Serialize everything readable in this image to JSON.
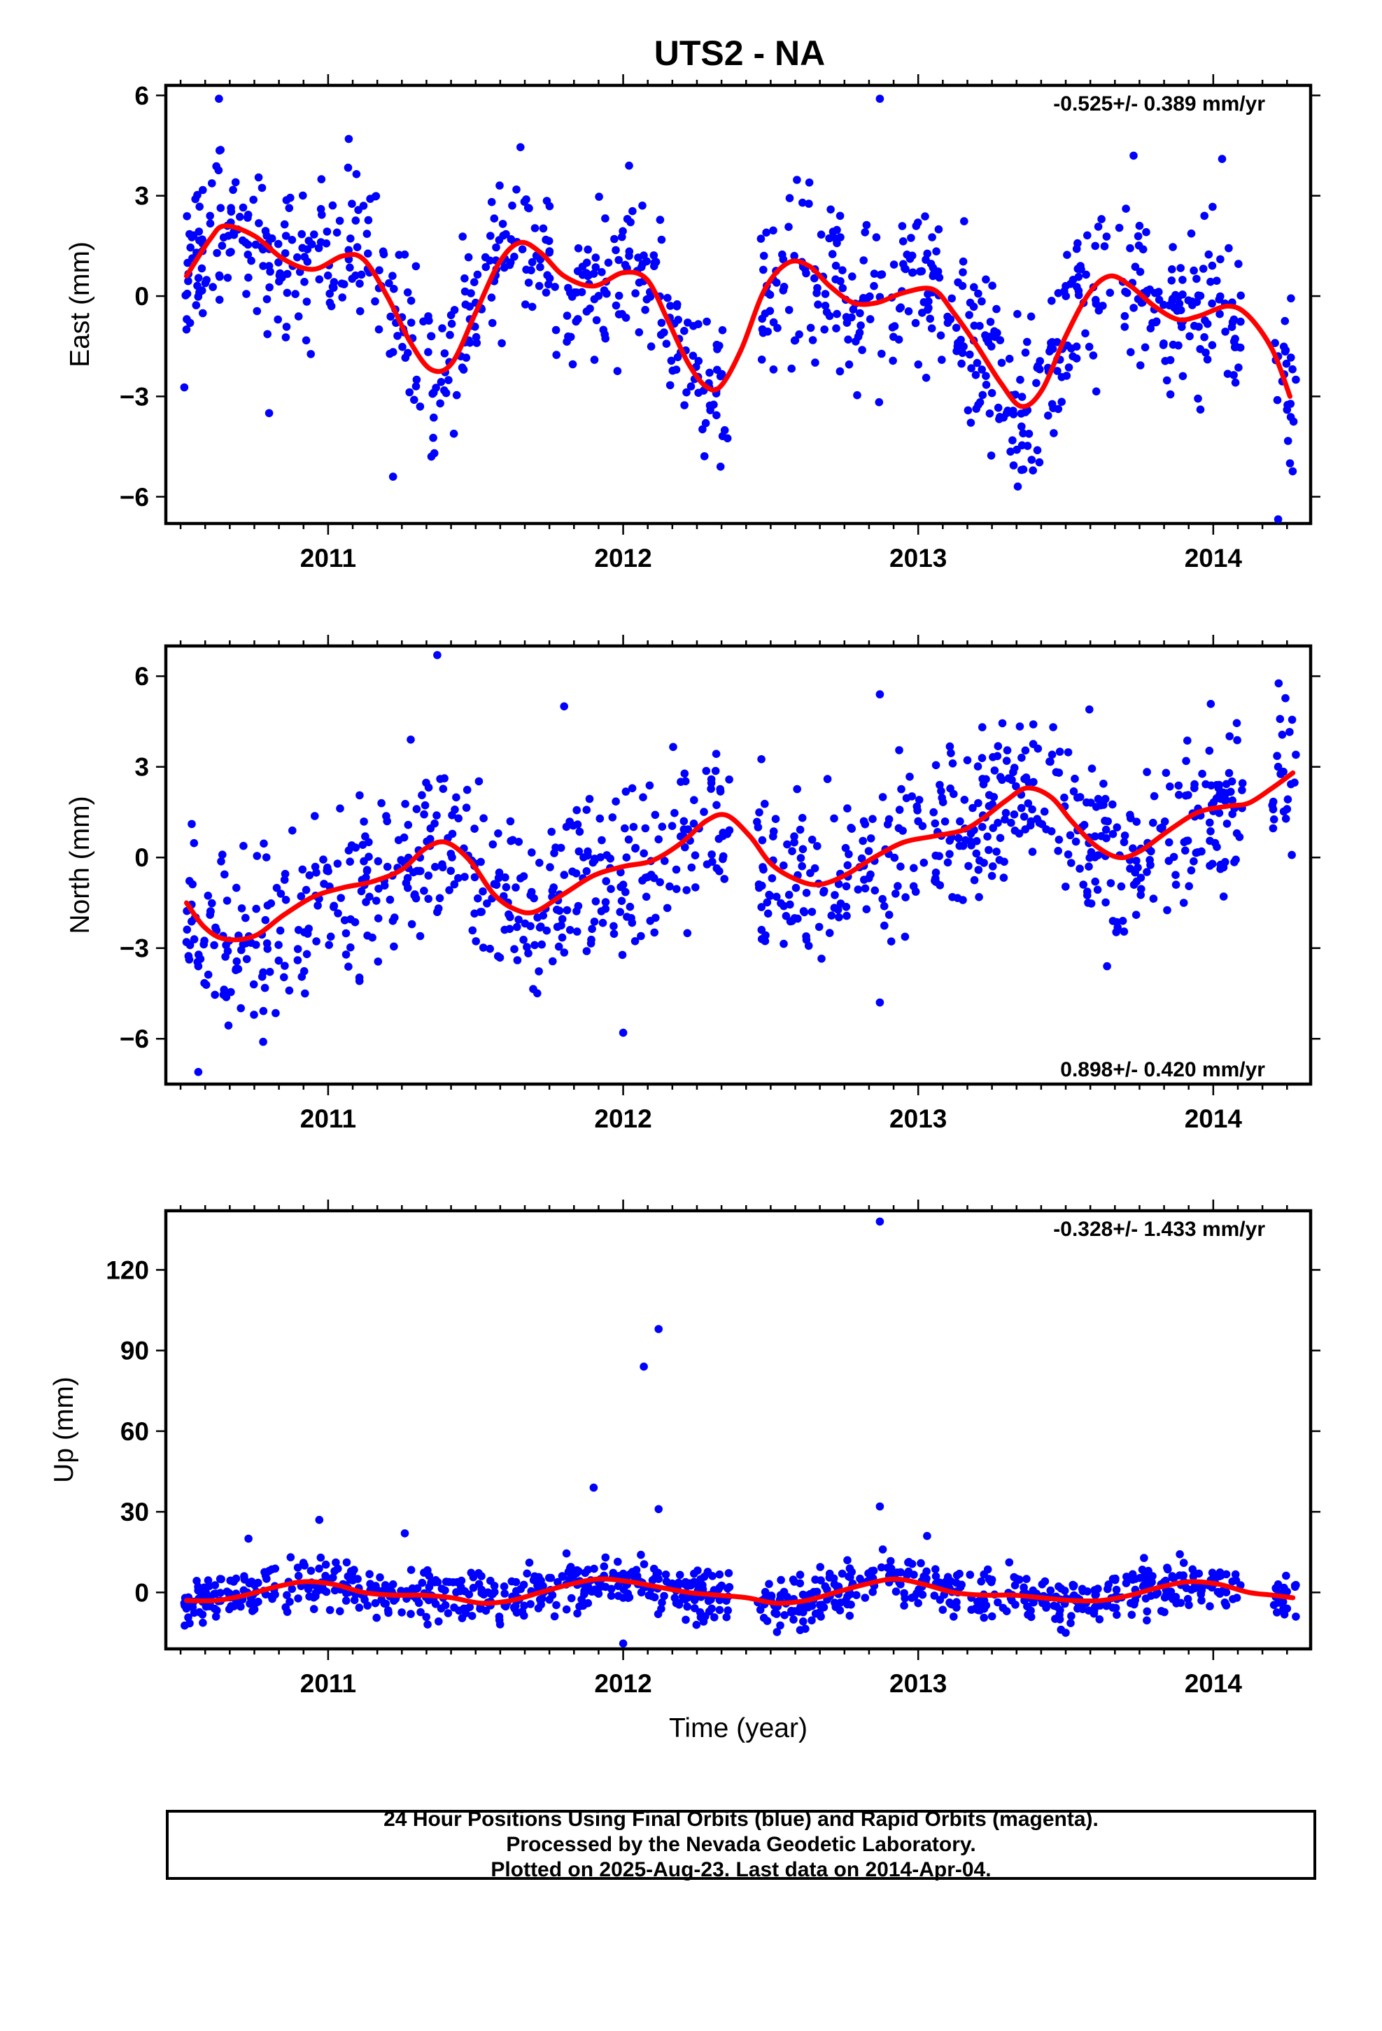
{
  "title": "UTS2 - NA",
  "colors": {
    "final_orbits": "#0000ff",
    "trend": "#ff0000",
    "frame": "#000000"
  },
  "x_axis": {
    "label": "Time (year)",
    "ticks": [
      "2011",
      "2012",
      "2013",
      "2014"
    ],
    "xlim": [
      2010.45,
      2014.33
    ]
  },
  "footer": {
    "line1": "24 Hour Positions Using Final Orbits (blue) and Rapid Orbits (magenta).",
    "line2": "Processed by the Nevada Geodetic Laboratory.",
    "line3": "Plotted on 2025-Aug-23. Last data on 2014-Apr-04."
  },
  "chart_data": [
    {
      "type": "scatter",
      "component": "east",
      "ylabel": "East (mm)",
      "rate": "-0.525+/- 0.389 mm/yr",
      "rate_position": "top-right",
      "ylim": [
        -6.8,
        6.3
      ],
      "yticks": [
        {
          "v": 6,
          "label": "6"
        },
        {
          "v": 3,
          "label": "3"
        },
        {
          "v": 0,
          "label": "0"
        },
        {
          "v": -3,
          "label": "−3"
        },
        {
          "v": -6,
          "label": "−6"
        }
      ],
      "trend": {
        "x": [
          2010.52,
          2010.6,
          2010.65,
          2010.75,
          2010.85,
          2010.95,
          2011.05,
          2011.12,
          2011.2,
          2011.28,
          2011.35,
          2011.42,
          2011.5,
          2011.58,
          2011.65,
          2011.72,
          2011.8,
          2011.9,
          2012.0,
          2012.08,
          2012.15,
          2012.22,
          2012.28,
          2012.33,
          2012.4,
          2012.48,
          2012.56,
          2012.63,
          2012.7,
          2012.78,
          2012.86,
          2012.95,
          2013.05,
          2013.12,
          2013.2,
          2013.28,
          2013.35,
          2013.42,
          2013.5,
          2013.58,
          2013.65,
          2013.72,
          2013.8,
          2013.88,
          2013.95,
          2014.05,
          2014.12,
          2014.2,
          2014.26
        ],
        "y": [
          0.6,
          1.7,
          2.1,
          1.8,
          1.1,
          0.8,
          1.2,
          1.1,
          0.0,
          -1.4,
          -2.2,
          -2.0,
          -0.5,
          1.0,
          1.6,
          1.3,
          0.6,
          0.3,
          0.7,
          0.5,
          -0.7,
          -2.0,
          -2.7,
          -2.7,
          -1.6,
          0.2,
          1.0,
          0.9,
          0.3,
          -0.2,
          -0.2,
          0.1,
          0.2,
          -0.5,
          -1.5,
          -2.6,
          -3.3,
          -2.8,
          -1.2,
          0.1,
          0.6,
          0.3,
          -0.3,
          -0.7,
          -0.6,
          -0.3,
          -0.6,
          -1.6,
          -3.0
        ]
      },
      "points": {
        "x": [
          2010.52,
          2010.55,
          2010.6,
          2010.67,
          2010.72,
          2010.78,
          2010.83,
          2010.88,
          2010.93,
          2010.97,
          2011.03,
          2011.07,
          2011.12,
          2011.18,
          2011.23,
          2011.27,
          2011.3,
          2011.35,
          2011.4,
          2011.45,
          2011.5,
          2011.55,
          2011.62,
          2011.68,
          2011.75,
          2011.82,
          2011.88,
          2011.95,
          2012.02,
          2012.08,
          2012.13,
          2012.18,
          2012.23,
          2012.28,
          2012.33,
          2012.47,
          2012.52,
          2012.58,
          2012.65,
          2012.72,
          2012.78,
          2012.85,
          2012.92,
          2012.98,
          2013.05,
          2013.1,
          2013.15,
          2013.2,
          2013.25,
          2013.3,
          2013.35,
          2013.4,
          2013.45,
          2013.5,
          2013.55,
          2013.6,
          2013.65,
          2013.7,
          2013.75,
          2013.8,
          2013.86,
          2013.92,
          2013.97,
          2014.02,
          2014.07,
          2014.22,
          2014.25,
          2014.28
        ],
        "y": [
          -1.0,
          2.9,
          2.4,
          2.2,
          1.6,
          0.9,
          -0.7,
          0.9,
          1.4,
          0.5,
          1.9,
          1.1,
          2.7,
          0.3,
          -0.8,
          -1.7,
          -2.5,
          -1.2,
          -2.9,
          -1.8,
          -0.2,
          1.8,
          1.7,
          0.4,
          1.3,
          0.1,
          0.6,
          1.0,
          1.2,
          -0.1,
          -0.8,
          -2.2,
          -2.7,
          -3.8,
          -2.4,
          -1.9,
          0.4,
          1.2,
          0.8,
          0.5,
          -0.4,
          0.3,
          -0.9,
          0.7,
          0.6,
          -0.8,
          -1.7,
          -2.0,
          -2.9,
          -3.5,
          -3.9,
          -2.6,
          -1.4,
          0.3,
          0.9,
          1.5,
          0.1,
          -0.6,
          2.1,
          -0.4,
          0.8,
          -1.2,
          2.4,
          -0.1,
          -0.7,
          -1.8,
          -3.4,
          -2.5
        ]
      },
      "outliers": {
        "x": [
          2010.63,
          2011.07,
          2012.02,
          2012.87,
          2013.73,
          2014.03,
          2011.22,
          2011.35,
          2012.33,
          2013.35,
          2014.22,
          2014.26,
          2010.8
        ],
        "y": [
          5.9,
          4.7,
          3.9,
          5.9,
          4.2,
          4.1,
          -5.4,
          -4.8,
          -5.1,
          -5.2,
          -6.7,
          -5.0,
          -3.5
        ]
      }
    },
    {
      "type": "scatter",
      "component": "north",
      "ylabel": "North (mm)",
      "rate": "0.898+/- 0.420 mm/yr",
      "rate_position": "bottom-right",
      "ylim": [
        -7.5,
        7.0
      ],
      "yticks": [
        {
          "v": 6,
          "label": "6"
        },
        {
          "v": 3,
          "label": "3"
        },
        {
          "v": 0,
          "label": "0"
        },
        {
          "v": -3,
          "label": "−3"
        },
        {
          "v": -6,
          "label": "−6"
        }
      ],
      "trend": {
        "x": [
          2010.52,
          2010.58,
          2010.65,
          2010.75,
          2010.85,
          2010.95,
          2011.05,
          2011.15,
          2011.25,
          2011.33,
          2011.4,
          2011.48,
          2011.56,
          2011.63,
          2011.7,
          2011.8,
          2011.9,
          2012.0,
          2012.1,
          2012.2,
          2012.28,
          2012.35,
          2012.43,
          2012.5,
          2012.58,
          2012.66,
          2012.75,
          2012.85,
          2012.95,
          2013.05,
          2013.15,
          2013.22,
          2013.3,
          2013.37,
          2013.45,
          2013.52,
          2013.6,
          2013.68,
          2013.75,
          2013.85,
          2013.95,
          2014.05,
          2014.12,
          2014.2,
          2014.27
        ],
        "y": [
          -1.5,
          -2.3,
          -2.7,
          -2.6,
          -1.9,
          -1.3,
          -1.0,
          -0.8,
          -0.4,
          0.3,
          0.5,
          -0.1,
          -1.2,
          -1.7,
          -1.8,
          -1.2,
          -0.6,
          -0.3,
          -0.1,
          0.5,
          1.2,
          1.4,
          0.7,
          -0.2,
          -0.7,
          -0.9,
          -0.6,
          0.0,
          0.5,
          0.7,
          0.9,
          1.3,
          1.9,
          2.3,
          2.0,
          1.2,
          0.4,
          0.0,
          0.2,
          0.9,
          1.5,
          1.7,
          1.8,
          2.3,
          2.8
        ]
      },
      "points": {
        "x": [
          2010.52,
          2010.56,
          2010.6,
          2010.66,
          2010.72,
          2010.78,
          2010.84,
          2010.9,
          2010.96,
          2011.02,
          2011.08,
          2011.14,
          2011.2,
          2011.26,
          2011.3,
          2011.34,
          2011.38,
          2011.42,
          2011.46,
          2011.52,
          2011.58,
          2011.64,
          2011.7,
          2011.76,
          2011.82,
          2011.88,
          2011.94,
          2012.0,
          2012.06,
          2012.12,
          2012.18,
          2012.24,
          2012.3,
          2012.36,
          2012.47,
          2012.52,
          2012.58,
          2012.64,
          2012.7,
          2012.76,
          2012.82,
          2012.88,
          2012.94,
          2013.0,
          2013.06,
          2013.12,
          2013.18,
          2013.24,
          2013.3,
          2013.36,
          2013.42,
          2013.48,
          2013.54,
          2013.6,
          2013.66,
          2013.72,
          2013.78,
          2013.84,
          2013.9,
          2013.96,
          2014.02,
          2014.08,
          2014.22,
          2014.25,
          2014.28
        ],
        "y": [
          -2.8,
          -3.6,
          -1.9,
          -3.1,
          -2.0,
          -3.8,
          -1.2,
          -2.4,
          -0.5,
          -1.6,
          0.4,
          -1.3,
          1.2,
          -0.2,
          1.6,
          -0.6,
          2.6,
          1.4,
          0.3,
          -1.8,
          -0.5,
          -2.3,
          -2.9,
          -1.1,
          -2.4,
          0.2,
          -1.7,
          -0.9,
          -2.6,
          0.6,
          -0.4,
          1.9,
          0.1,
          0.9,
          -2.7,
          -1.3,
          0.5,
          -1.8,
          -2.5,
          -0.6,
          1.1,
          2.0,
          -0.3,
          1.2,
          -0.5,
          2.1,
          0.4,
          1.7,
          3.2,
          2.6,
          1.1,
          3.5,
          0.9,
          -0.8,
          -2.1,
          1.3,
          0.3,
          2.8,
          -1.5,
          0.2,
          2.4,
          0.8,
          3.0,
          1.6,
          3.4
        ]
      },
      "outliers": {
        "x": [
          2010.56,
          2010.78,
          2011.37,
          2011.8,
          2012.0,
          2012.87,
          2012.87,
          2013.58,
          2013.64,
          2011.28
        ],
        "y": [
          -7.1,
          -6.1,
          6.7,
          5.0,
          -5.8,
          5.4,
          -4.8,
          4.9,
          -3.6,
          3.9
        ]
      }
    },
    {
      "type": "scatter",
      "component": "up",
      "ylabel": "Up (mm)",
      "rate": "-0.328+/- 1.433 mm/yr",
      "rate_position": "top-right",
      "ylim": [
        -21,
        142
      ],
      "yticks": [
        {
          "v": 120,
          "label": "120"
        },
        {
          "v": 90,
          "label": "90"
        },
        {
          "v": 60,
          "label": "60"
        },
        {
          "v": 30,
          "label": "30"
        },
        {
          "v": 0,
          "label": "0"
        }
      ],
      "trend": {
        "x": [
          2010.52,
          2010.62,
          2010.72,
          2010.82,
          2010.92,
          2011.02,
          2011.12,
          2011.22,
          2011.32,
          2011.42,
          2011.52,
          2011.62,
          2011.72,
          2011.82,
          2011.92,
          2012.02,
          2012.12,
          2012.22,
          2012.32,
          2012.42,
          2012.52,
          2012.62,
          2012.72,
          2012.82,
          2012.92,
          2013.02,
          2013.12,
          2013.22,
          2013.32,
          2013.42,
          2013.52,
          2013.62,
          2013.72,
          2013.82,
          2013.92,
          2014.02,
          2014.12,
          2014.2,
          2014.27
        ],
        "y": [
          -3,
          -3,
          -1,
          2,
          4,
          3,
          0,
          -1,
          -1,
          -2,
          -4,
          -3,
          0,
          3,
          5,
          4,
          2,
          0,
          -1,
          -2,
          -4,
          -3,
          0,
          3,
          5,
          3,
          0,
          -1,
          -1,
          -2,
          -3,
          -3,
          -1,
          2,
          4,
          3,
          0,
          -1,
          -2
        ]
      },
      "points": {
        "x": [
          2010.52,
          2010.56,
          2010.62,
          2010.68,
          2010.74,
          2010.8,
          2010.86,
          2010.92,
          2010.98,
          2011.04,
          2011.1,
          2011.16,
          2011.22,
          2011.28,
          2011.34,
          2011.4,
          2011.46,
          2011.52,
          2011.58,
          2011.64,
          2011.7,
          2011.76,
          2011.82,
          2011.88,
          2011.94,
          2012.0,
          2012.06,
          2012.12,
          2012.18,
          2012.24,
          2012.3,
          2012.36,
          2012.47,
          2012.52,
          2012.58,
          2012.64,
          2012.7,
          2012.76,
          2012.82,
          2012.88,
          2012.94,
          2013.0,
          2013.06,
          2013.12,
          2013.18,
          2013.24,
          2013.3,
          2013.36,
          2013.42,
          2013.48,
          2013.54,
          2013.6,
          2013.66,
          2013.72,
          2013.78,
          2013.84,
          2013.9,
          2013.96,
          2014.02,
          2014.08,
          2014.22,
          2014.25,
          2014.28
        ],
        "y": [
          -6,
          2,
          -9,
          4,
          -3,
          8,
          -1,
          10,
          2,
          -7,
          5,
          -4,
          3,
          -8,
          -2,
          4,
          -6,
          1,
          -9,
          -3,
          6,
          -1,
          9,
          2,
          13,
          -2,
          14,
          5,
          -4,
          7,
          -6,
          2,
          -3,
          -8,
          4,
          -5,
          7,
          12,
          -2,
          16,
          3,
          -4,
          6,
          -9,
          -2,
          5,
          -7,
          -3,
          3,
          -10,
          -6,
          -1,
          5,
          -4,
          8,
          1,
          11,
          -3,
          6,
          -2,
          3,
          -6,
          -9
        ]
      },
      "outliers": {
        "x": [
          2010.73,
          2010.97,
          2011.26,
          2011.9,
          2012.07,
          2012.12,
          2012.12,
          2012.87,
          2012.87,
          2012.0,
          2012.6,
          2013.03,
          2013.5
        ],
        "y": [
          20,
          27,
          22,
          39,
          84,
          98,
          31,
          138,
          32,
          -19,
          -14,
          21,
          -15
        ]
      }
    }
  ]
}
